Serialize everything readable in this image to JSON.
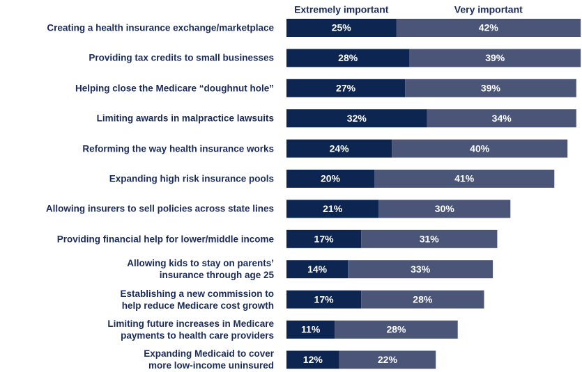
{
  "chart_data": {
    "type": "stacked-bar",
    "orientation": "horizontal",
    "categories": [
      "Creating a health insurance exchange/marketplace",
      "Providing tax credits to small businesses",
      "Helping close the Medicare “doughnut hole”",
      "Limiting awards in malpractice lawsuits",
      "Reforming the way health insurance works",
      "Expanding high risk insurance pools",
      "Allowing insurers to sell policies across state lines",
      "Providing financial help for lower/middle income",
      "Allowing kids to stay on parents’\ninsurance through age 25",
      "Establishing a new commission to\nhelp reduce Medicare cost growth",
      "Limiting future increases in Medicare\npayments to health care providers",
      "Expanding Medicaid to cover\nmore low-income uninsured"
    ],
    "series": [
      {
        "name": "Extremely important",
        "color": "#0d2551",
        "values": [
          25,
          28,
          27,
          32,
          24,
          20,
          21,
          17,
          14,
          17,
          11,
          12
        ],
        "value_labels": [
          "25%",
          "28%",
          "27%",
          "32%",
          "24%",
          "20%",
          "21%",
          "17%",
          "14%",
          "17%",
          "11%",
          "12%"
        ]
      },
      {
        "name": "Very important",
        "color": "#4a5578",
        "values": [
          42,
          39,
          39,
          34,
          40,
          41,
          30,
          31,
          33,
          28,
          28,
          22
        ],
        "value_labels": [
          "42%",
          "39%",
          "39%",
          "34%",
          "40%",
          "41%",
          "30%",
          "31%",
          "33%",
          "28%",
          "28%",
          "22%"
        ]
      }
    ]
  }
}
